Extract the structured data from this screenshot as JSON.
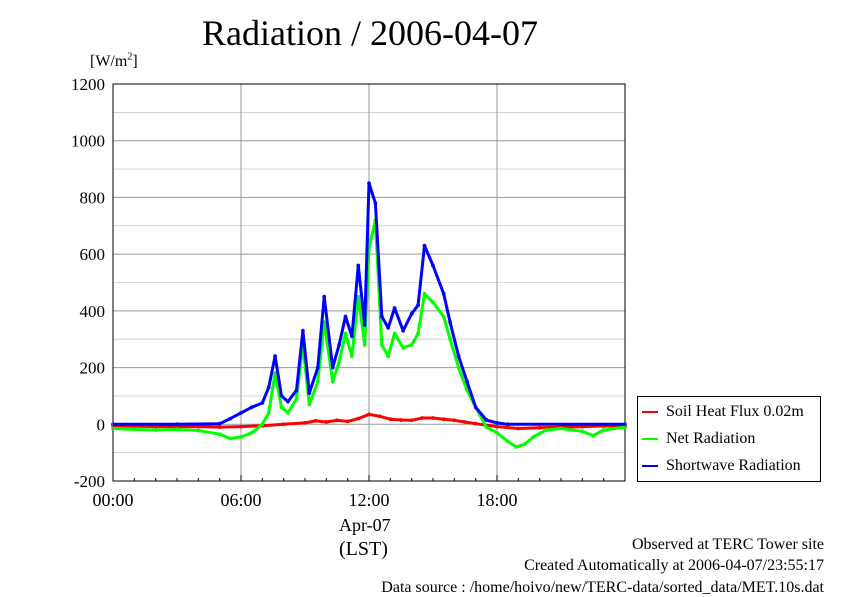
{
  "unit_label": "[W/m",
  "unit_superscript": "2",
  "unit_label_end": "]",
  "chart_data": {
    "type": "line",
    "title": "Radiation / 2006-04-07",
    "xlabel_date": "Apr-07",
    "xlabel_tz": "(LST)",
    "xlim": [
      0,
      24
    ],
    "ylim": [
      -200,
      1200
    ],
    "x_ticks": [
      {
        "value": 0,
        "label": "00:00"
      },
      {
        "value": 6,
        "label": "06:00"
      },
      {
        "value": 12,
        "label": "12:00"
      },
      {
        "value": 18,
        "label": "18:00"
      }
    ],
    "y_ticks": [
      -200,
      0,
      200,
      400,
      600,
      800,
      1000,
      1200
    ],
    "grid": true,
    "legend_placement": "right",
    "series": [
      {
        "name": "Soil Heat Flux 0.02m",
        "color": "#ff0000",
        "points": [
          [
            0,
            -5
          ],
          [
            2,
            -8
          ],
          [
            4,
            -8
          ],
          [
            5,
            -10
          ],
          [
            6,
            -8
          ],
          [
            7,
            -5
          ],
          [
            8,
            0
          ],
          [
            9,
            5
          ],
          [
            9.5,
            12
          ],
          [
            10,
            8
          ],
          [
            10.5,
            14
          ],
          [
            11,
            10
          ],
          [
            11.5,
            20
          ],
          [
            12,
            35
          ],
          [
            12.5,
            28
          ],
          [
            13,
            18
          ],
          [
            13.5,
            15
          ],
          [
            14,
            14
          ],
          [
            14.5,
            22
          ],
          [
            15,
            22
          ],
          [
            15.5,
            18
          ],
          [
            16,
            14
          ],
          [
            16.5,
            8
          ],
          [
            17,
            2
          ],
          [
            18,
            -8
          ],
          [
            19,
            -15
          ],
          [
            20,
            -12
          ],
          [
            21,
            -10
          ],
          [
            22,
            -8
          ],
          [
            23,
            -6
          ],
          [
            24,
            -5
          ]
        ]
      },
      {
        "name": "Net Radiation",
        "color": "#00ff00",
        "points": [
          [
            0,
            -15
          ],
          [
            1,
            -18
          ],
          [
            2,
            -20
          ],
          [
            3,
            -18
          ],
          [
            4,
            -22
          ],
          [
            5,
            -35
          ],
          [
            5.5,
            -50
          ],
          [
            6,
            -45
          ],
          [
            6.5,
            -30
          ],
          [
            7,
            0
          ],
          [
            7.3,
            40
          ],
          [
            7.6,
            180
          ],
          [
            7.9,
            60
          ],
          [
            8.2,
            40
          ],
          [
            8.6,
            90
          ],
          [
            8.9,
            280
          ],
          [
            9.2,
            70
          ],
          [
            9.6,
            150
          ],
          [
            9.9,
            360
          ],
          [
            10.3,
            150
          ],
          [
            10.6,
            220
          ],
          [
            10.9,
            320
          ],
          [
            11.2,
            240
          ],
          [
            11.5,
            450
          ],
          [
            11.8,
            280
          ],
          [
            12,
            620
          ],
          [
            12.3,
            720
          ],
          [
            12.6,
            280
          ],
          [
            12.9,
            240
          ],
          [
            13.2,
            320
          ],
          [
            13.6,
            270
          ],
          [
            14,
            280
          ],
          [
            14.3,
            320
          ],
          [
            14.6,
            460
          ],
          [
            15,
            430
          ],
          [
            15.5,
            380
          ],
          [
            15.8,
            300
          ],
          [
            16.2,
            200
          ],
          [
            16.6,
            120
          ],
          [
            17,
            60
          ],
          [
            17.5,
            -10
          ],
          [
            18,
            -30
          ],
          [
            18.5,
            -60
          ],
          [
            18.9,
            -80
          ],
          [
            19.3,
            -70
          ],
          [
            19.7,
            -45
          ],
          [
            20.3,
            -20
          ],
          [
            21,
            -15
          ],
          [
            22,
            -25
          ],
          [
            22.5,
            -40
          ],
          [
            23,
            -20
          ],
          [
            24,
            -10
          ]
        ]
      },
      {
        "name": "Shortwave Radiation",
        "color": "#0000ff",
        "points": [
          [
            0,
            0
          ],
          [
            3,
            0
          ],
          [
            5,
            2
          ],
          [
            5.5,
            20
          ],
          [
            6,
            40
          ],
          [
            6.5,
            60
          ],
          [
            7,
            75
          ],
          [
            7.3,
            130
          ],
          [
            7.6,
            240
          ],
          [
            7.9,
            100
          ],
          [
            8.2,
            80
          ],
          [
            8.6,
            120
          ],
          [
            8.9,
            330
          ],
          [
            9.2,
            110
          ],
          [
            9.6,
            200
          ],
          [
            9.9,
            450
          ],
          [
            10.3,
            200
          ],
          [
            10.6,
            280
          ],
          [
            10.9,
            380
          ],
          [
            11.2,
            310
          ],
          [
            11.5,
            560
          ],
          [
            11.8,
            350
          ],
          [
            12,
            850
          ],
          [
            12.3,
            780
          ],
          [
            12.6,
            380
          ],
          [
            12.9,
            340
          ],
          [
            13.2,
            410
          ],
          [
            13.6,
            330
          ],
          [
            14,
            390
          ],
          [
            14.3,
            420
          ],
          [
            14.6,
            630
          ],
          [
            15,
            560
          ],
          [
            15.5,
            460
          ],
          [
            15.8,
            360
          ],
          [
            16.2,
            240
          ],
          [
            16.6,
            150
          ],
          [
            17,
            60
          ],
          [
            17.5,
            15
          ],
          [
            18,
            5
          ],
          [
            18.5,
            0
          ],
          [
            24,
            0
          ]
        ]
      }
    ]
  },
  "footer": {
    "line1": "Observed at TERC Tower site",
    "line2": "Created Automatically at 2006-04-07/23:55:17",
    "line3": "Data source : /home/hoivo/new/TERC-data/sorted_data/MET.10s.dat"
  }
}
